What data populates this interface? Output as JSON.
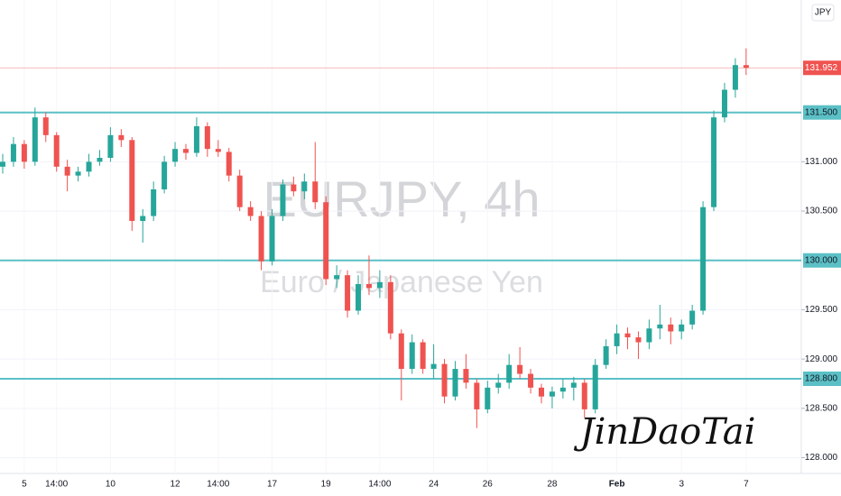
{
  "chart_data": {
    "type": "candlestick",
    "title": "EURJPY, 4h",
    "subtitle": "Euro / Japanese Yen",
    "currency": "JPY",
    "signature": "JinDaoTai",
    "up_color": "#26a69a",
    "down_color": "#ef5350",
    "level_color": "#5bc0c6",
    "ylim": [
      127.84,
      132.64
    ],
    "yticks": [
      {
        "value": 128.0,
        "label": "128.000"
      },
      {
        "value": 128.5,
        "label": "128.500"
      },
      {
        "value": 129.0,
        "label": "129.000"
      },
      {
        "value": 129.5,
        "label": "129.500"
      },
      {
        "value": 130.5,
        "label": "130.500"
      },
      {
        "value": 131.0,
        "label": "131.000"
      }
    ],
    "levels": [
      {
        "value": 131.5,
        "label": "131.500"
      },
      {
        "value": 130.0,
        "label": "130.000"
      },
      {
        "value": 128.8,
        "label": "128.800"
      }
    ],
    "last_price": {
      "value": 131.952,
      "label": "131.952"
    },
    "xticks": [
      {
        "value": 2,
        "label": "5"
      },
      {
        "value": 5,
        "label": "14:00"
      },
      {
        "value": 10,
        "label": "10"
      },
      {
        "value": 16,
        "label": "12"
      },
      {
        "value": 20,
        "label": "14:00"
      },
      {
        "value": 25,
        "label": "17"
      },
      {
        "value": 30,
        "label": "19"
      },
      {
        "value": 35,
        "label": "14:00"
      },
      {
        "value": 40,
        "label": "24"
      },
      {
        "value": 45,
        "label": "26"
      },
      {
        "value": 51,
        "label": "28"
      },
      {
        "value": 57,
        "label": "Feb"
      },
      {
        "value": 63,
        "label": "3"
      },
      {
        "value": 69,
        "label": "7"
      }
    ],
    "ohlc": [
      [
        130.95,
        131.08,
        130.88,
        131.0
      ],
      [
        131.0,
        131.25,
        130.95,
        131.18
      ],
      [
        131.18,
        131.22,
        130.93,
        131.0
      ],
      [
        131.0,
        131.55,
        130.96,
        131.45
      ],
      [
        131.45,
        131.5,
        131.2,
        131.27
      ],
      [
        131.27,
        131.3,
        130.9,
        130.95
      ],
      [
        130.95,
        131.02,
        130.7,
        130.86
      ],
      [
        130.86,
        130.95,
        130.8,
        130.9
      ],
      [
        130.9,
        131.08,
        130.85,
        131.0
      ],
      [
        131.0,
        131.12,
        130.96,
        131.04
      ],
      [
        131.04,
        131.35,
        131.0,
        131.27
      ],
      [
        131.27,
        131.33,
        131.15,
        131.22
      ],
      [
        131.22,
        131.25,
        130.3,
        130.4
      ],
      [
        130.4,
        130.52,
        130.18,
        130.45
      ],
      [
        130.45,
        130.8,
        130.4,
        130.72
      ],
      [
        130.72,
        131.06,
        130.68,
        131.0
      ],
      [
        131.0,
        131.2,
        130.95,
        131.13
      ],
      [
        131.13,
        131.18,
        131.02,
        131.09
      ],
      [
        131.09,
        131.45,
        131.05,
        131.36
      ],
      [
        131.36,
        131.4,
        131.05,
        131.13
      ],
      [
        131.13,
        131.22,
        131.05,
        131.1
      ],
      [
        131.1,
        131.14,
        130.8,
        130.86
      ],
      [
        130.86,
        130.92,
        130.5,
        130.54
      ],
      [
        130.54,
        130.6,
        130.4,
        130.45
      ],
      [
        130.45,
        130.5,
        129.9,
        129.99
      ],
      [
        129.99,
        130.52,
        129.95,
        130.45
      ],
      [
        130.45,
        130.82,
        130.4,
        130.77
      ],
      [
        130.77,
        130.85,
        130.65,
        130.7
      ],
      [
        130.7,
        130.88,
        130.62,
        130.8
      ],
      [
        130.8,
        131.2,
        130.52,
        130.59
      ],
      [
        130.59,
        130.65,
        129.75,
        129.81
      ],
      [
        129.81,
        129.95,
        129.72,
        129.85
      ],
      [
        129.85,
        129.9,
        129.42,
        129.49
      ],
      [
        129.49,
        129.85,
        129.45,
        129.76
      ],
      [
        129.76,
        130.05,
        129.65,
        129.72
      ],
      [
        129.72,
        129.9,
        129.62,
        129.78
      ],
      [
        129.78,
        129.85,
        129.2,
        129.26
      ],
      [
        129.26,
        129.3,
        128.58,
        128.9
      ],
      [
        128.9,
        129.25,
        128.85,
        129.17
      ],
      [
        129.17,
        129.2,
        128.85,
        128.9
      ],
      [
        128.9,
        129.15,
        128.8,
        128.95
      ],
      [
        128.95,
        129.0,
        128.55,
        128.62
      ],
      [
        128.62,
        128.98,
        128.58,
        128.9
      ],
      [
        128.9,
        129.05,
        128.7,
        128.76
      ],
      [
        128.76,
        128.8,
        128.3,
        128.49
      ],
      [
        128.49,
        128.78,
        128.45,
        128.71
      ],
      [
        128.71,
        128.85,
        128.65,
        128.76
      ],
      [
        128.76,
        129.05,
        128.7,
        128.94
      ],
      [
        128.94,
        129.12,
        128.8,
        128.85
      ],
      [
        128.85,
        128.9,
        128.65,
        128.71
      ],
      [
        128.71,
        128.75,
        128.55,
        128.62
      ],
      [
        128.62,
        128.72,
        128.5,
        128.67
      ],
      [
        128.67,
        128.8,
        128.6,
        128.71
      ],
      [
        128.71,
        128.82,
        128.58,
        128.76
      ],
      [
        128.76,
        128.8,
        128.4,
        128.49
      ],
      [
        128.49,
        129.0,
        128.45,
        128.94
      ],
      [
        128.94,
        129.2,
        128.9,
        129.13
      ],
      [
        129.13,
        129.35,
        129.05,
        129.26
      ],
      [
        129.26,
        129.32,
        129.1,
        129.22
      ],
      [
        129.22,
        129.28,
        129.0,
        129.17
      ],
      [
        129.17,
        129.4,
        129.1,
        129.31
      ],
      [
        129.31,
        129.55,
        129.2,
        129.35
      ],
      [
        129.35,
        129.42,
        129.15,
        129.28
      ],
      [
        129.28,
        129.4,
        129.2,
        129.35
      ],
      [
        129.35,
        129.55,
        129.3,
        129.49
      ],
      [
        129.49,
        130.6,
        129.45,
        130.54
      ],
      [
        130.54,
        131.52,
        130.5,
        131.45
      ],
      [
        131.45,
        131.8,
        131.4,
        131.73
      ],
      [
        131.73,
        132.05,
        131.65,
        131.98
      ],
      [
        131.98,
        132.15,
        131.88,
        131.952
      ]
    ]
  }
}
